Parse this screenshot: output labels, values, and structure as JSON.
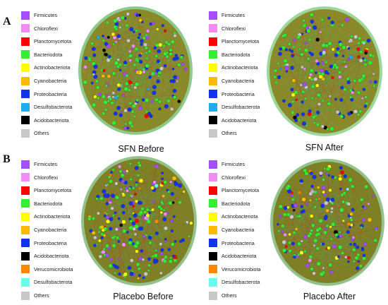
{
  "panel_labels": [
    "A",
    "B"
  ],
  "panels": [
    {
      "caption": "SFN Before",
      "legend": [
        {
          "label": "Firmicutes",
          "color": "#a64dff"
        },
        {
          "label": "Chloroflexi",
          "color": "#f28cf2"
        },
        {
          "label": "Planctomycetota",
          "color": "#ff0000"
        },
        {
          "label": "Bacteriodota",
          "color": "#33ee33"
        },
        {
          "label": "Actinobacteriota",
          "color": "#ffff00"
        },
        {
          "label": "Cyanobacteria",
          "color": "#ffbb00"
        },
        {
          "label": "Proteobacteria",
          "color": "#1133ee"
        },
        {
          "label": "Desulfobacterota",
          "color": "#22aaee"
        },
        {
          "label": "Acidobacteriota",
          "color": "#000000"
        },
        {
          "label": "Others",
          "color": "#c8c8c8"
        }
      ],
      "network": {
        "seed": 11,
        "nodes": 230,
        "background": "#8a8a2a",
        "halo": "#2f9f2f",
        "node_weights": {
          "Bacteriodota": 45,
          "Proteobacteria": 24,
          "Firmicutes": 6,
          "Chloroflexi": 5,
          "Others": 8,
          "Planctomycetota": 3,
          "Actinobacteriota": 3,
          "Cyanobacteria": 2,
          "Desulfobacterota": 2,
          "Acidobacteriota": 2
        }
      }
    },
    {
      "caption": "SFN After",
      "legend": [
        {
          "label": "Firmicutes",
          "color": "#a64dff"
        },
        {
          "label": "Chloroflexi",
          "color": "#f28cf2"
        },
        {
          "label": "Planctomycetota",
          "color": "#ff0000"
        },
        {
          "label": "Bacteriodota",
          "color": "#33ee33"
        },
        {
          "label": "Actinobacteriota",
          "color": "#ffff00"
        },
        {
          "label": "Cyanobacteria",
          "color": "#ffbb00"
        },
        {
          "label": "Proteobacteria",
          "color": "#1133ee"
        },
        {
          "label": "Desulfobacterota",
          "color": "#22aaee"
        },
        {
          "label": "Acidobacteriota",
          "color": "#000000"
        },
        {
          "label": "Others",
          "color": "#c8c8c8"
        }
      ],
      "network": {
        "seed": 29,
        "nodes": 210,
        "background": "#8a8a2a",
        "halo": "#4ab84a",
        "node_weights": {
          "Bacteriodota": 44,
          "Proteobacteria": 24,
          "Firmicutes": 6,
          "Chloroflexi": 5,
          "Others": 9,
          "Planctomycetota": 3,
          "Actinobacteriota": 3,
          "Cyanobacteria": 2,
          "Desulfobacterota": 2,
          "Acidobacteriota": 2
        }
      }
    },
    {
      "caption": "Placebo Before",
      "legend": [
        {
          "label": "Firmicutes",
          "color": "#a64dff"
        },
        {
          "label": "Chloroflexi",
          "color": "#f28cf2"
        },
        {
          "label": "Planctomycetota",
          "color": "#ff0000"
        },
        {
          "label": "Bacteriodota",
          "color": "#33ee33"
        },
        {
          "label": "Actinobacteriota",
          "color": "#ffff00"
        },
        {
          "label": "Cyanobacteria",
          "color": "#ffbb00"
        },
        {
          "label": "Proteobacteria",
          "color": "#1133ee"
        },
        {
          "label": "Acidobacteriota",
          "color": "#000000"
        },
        {
          "label": "Verucomicrobiota",
          "color": "#ff8800"
        },
        {
          "label": "Desulfobacterota",
          "color": "#66ffee"
        },
        {
          "label": "Others",
          "color": "#c8c8c8"
        }
      ],
      "network": {
        "seed": 47,
        "nodes": 250,
        "background": "#7f7f25",
        "halo": "#3c8f2f",
        "node_weights": {
          "Bacteriodota": 38,
          "Proteobacteria": 24,
          "Firmicutes": 10,
          "Chloroflexi": 4,
          "Others": 7,
          "Planctomycetota": 3,
          "Actinobacteriota": 6,
          "Cyanobacteria": 3,
          "Acidobacteriota": 2,
          "Verucomicrobiota": 2,
          "Desulfobacterota": 1
        }
      }
    },
    {
      "caption": "Placebo After",
      "legend": [
        {
          "label": "Firmicutes",
          "color": "#a64dff"
        },
        {
          "label": "Chloroflexi",
          "color": "#f28cf2"
        },
        {
          "label": "Planctomycetota",
          "color": "#ff0000"
        },
        {
          "label": "Bacteriodota",
          "color": "#33ee33"
        },
        {
          "label": "Actinobacteriota",
          "color": "#ffff00"
        },
        {
          "label": "Cyanobacteria",
          "color": "#ffbb00"
        },
        {
          "label": "Proteobacteria",
          "color": "#1133ee"
        },
        {
          "label": "Acidobacteriota",
          "color": "#000000"
        },
        {
          "label": "Verucomicrobiota",
          "color": "#ff8800"
        },
        {
          "label": "Desulfobacterota",
          "color": "#66ffee"
        },
        {
          "label": "Others",
          "color": "#c8c8c8"
        }
      ],
      "network": {
        "seed": 83,
        "nodes": 200,
        "background": "#7f7f25",
        "halo": "#3c8f2f",
        "node_weights": {
          "Bacteriodota": 38,
          "Proteobacteria": 22,
          "Firmicutes": 8,
          "Chloroflexi": 4,
          "Others": 7,
          "Planctomycetota": 4,
          "Actinobacteriota": 8,
          "Cyanobacteria": 4,
          "Acidobacteriota": 2,
          "Verucomicrobiota": 2,
          "Desulfobacterota": 1
        }
      }
    }
  ]
}
